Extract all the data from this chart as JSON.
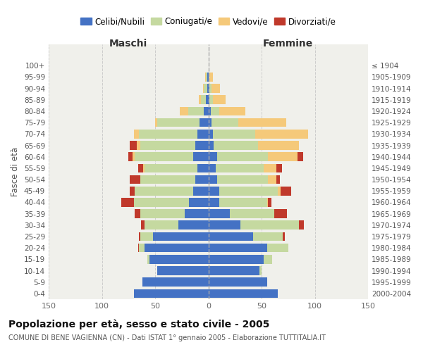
{
  "age_groups": [
    "0-4",
    "5-9",
    "10-14",
    "15-19",
    "20-24",
    "25-29",
    "30-34",
    "35-39",
    "40-44",
    "45-49",
    "50-54",
    "55-59",
    "60-64",
    "65-69",
    "70-74",
    "75-79",
    "80-84",
    "85-89",
    "90-94",
    "95-99",
    "100+"
  ],
  "birth_years": [
    "2000-2004",
    "1995-1999",
    "1990-1994",
    "1985-1989",
    "1980-1984",
    "1975-1979",
    "1970-1974",
    "1965-1969",
    "1960-1964",
    "1955-1959",
    "1950-1954",
    "1945-1949",
    "1940-1944",
    "1935-1939",
    "1930-1934",
    "1925-1929",
    "1920-1924",
    "1915-1919",
    "1910-1914",
    "1905-1909",
    "≤ 1904"
  ],
  "maschi_celibi": [
    70,
    62,
    48,
    55,
    60,
    52,
    28,
    22,
    18,
    14,
    12,
    10,
    14,
    12,
    10,
    8,
    4,
    2,
    1,
    1,
    0
  ],
  "maschi_coniugati": [
    0,
    0,
    0,
    2,
    5,
    12,
    32,
    42,
    52,
    55,
    52,
    50,
    55,
    52,
    55,
    40,
    15,
    5,
    3,
    1,
    0
  ],
  "maschi_vedovi": [
    0,
    0,
    0,
    0,
    0,
    0,
    0,
    0,
    0,
    0,
    0,
    1,
    2,
    3,
    5,
    2,
    8,
    2,
    1,
    1,
    0
  ],
  "maschi_divorziati": [
    0,
    0,
    0,
    0,
    1,
    1,
    3,
    5,
    12,
    5,
    10,
    5,
    4,
    7,
    0,
    0,
    0,
    0,
    0,
    0,
    0
  ],
  "femmine_nubili": [
    65,
    55,
    48,
    52,
    55,
    42,
    30,
    20,
    10,
    10,
    8,
    7,
    8,
    5,
    4,
    3,
    2,
    1,
    1,
    0,
    0
  ],
  "femmine_coniugate": [
    0,
    0,
    2,
    8,
    20,
    28,
    55,
    42,
    45,
    55,
    48,
    45,
    48,
    42,
    40,
    25,
    8,
    3,
    2,
    1,
    0
  ],
  "femmine_vedove": [
    0,
    0,
    0,
    0,
    0,
    0,
    0,
    0,
    1,
    3,
    8,
    12,
    28,
    38,
    50,
    45,
    25,
    12,
    8,
    3,
    0
  ],
  "femmine_divorziate": [
    0,
    0,
    0,
    0,
    0,
    2,
    5,
    12,
    3,
    10,
    3,
    5,
    5,
    0,
    0,
    0,
    0,
    0,
    0,
    0,
    0
  ],
  "color_celibi": "#4472c4",
  "color_coniugati": "#c5d9a0",
  "color_vedovi": "#f5c97a",
  "color_divorziati": "#c0392b",
  "xlim": 150,
  "title": "Popolazione per età, sesso e stato civile - 2005",
  "subtitle": "COMUNE DI BENE VAGIENNA (CN) - Dati ISTAT 1° gennaio 2005 - Elaborazione TUTTITALIA.IT",
  "label_maschi": "Maschi",
  "label_femmine": "Femmine",
  "label_fasce": "Fasce di età",
  "legend_labels": [
    "Celibi/Nubili",
    "Coniugati/e",
    "Vedovi/e",
    "Divorziati/e"
  ],
  "bg_plot": "#f0f0eb",
  "bg_fig": "#ffffff"
}
